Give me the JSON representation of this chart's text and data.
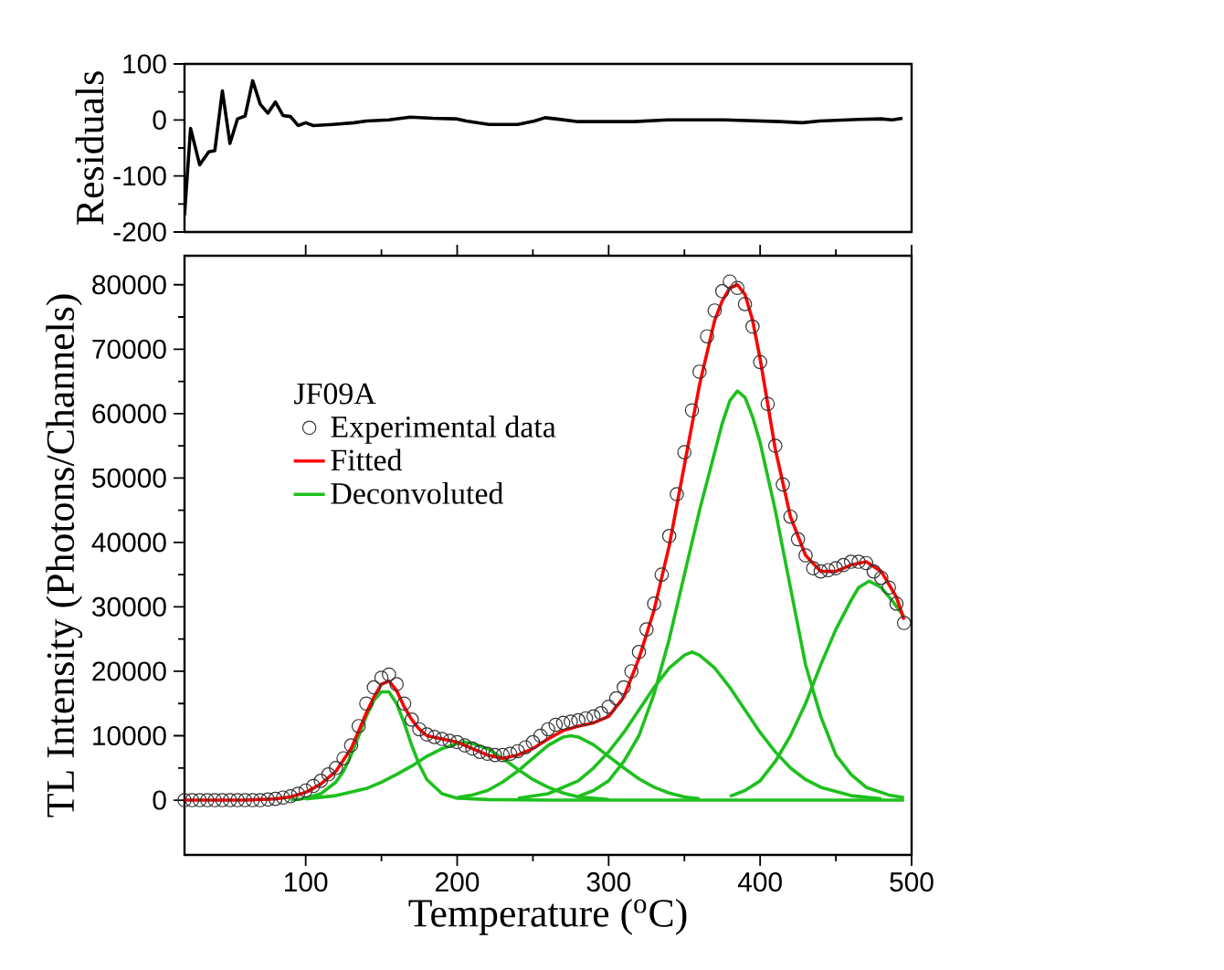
{
  "chart_data": [
    {
      "type": "line",
      "ylabel": "Residuals",
      "xlim": [
        20,
        500
      ],
      "ylim": [
        -200,
        100
      ],
      "yticks": [
        -200,
        -100,
        0,
        100
      ],
      "tick_labels": "y",
      "legend": false,
      "series": [
        {
          "color": "#000000",
          "x": [
            20,
            24,
            30,
            36,
            40,
            45,
            50,
            55,
            60,
            65,
            70,
            75,
            80,
            85,
            90,
            95,
            100,
            105,
            118,
            132,
            140,
            155,
            169,
            184,
            199,
            206,
            221,
            240,
            251,
            258,
            265,
            280,
            302,
            317,
            339,
            376,
            413,
            428,
            439,
            465,
            480,
            487,
            494
          ],
          "values": [
            -170,
            -15,
            -80,
            -57,
            -55,
            52,
            -42,
            2,
            7,
            70,
            28,
            12,
            32,
            8,
            6,
            -10,
            -5,
            -10,
            -8,
            -5,
            -2,
            0,
            5,
            3,
            2,
            -2,
            -8,
            -8,
            -2,
            4,
            2,
            -3,
            -3,
            -3,
            0,
            0,
            -3,
            -5,
            -2,
            1,
            2,
            0,
            3
          ]
        }
      ]
    },
    {
      "type": "line",
      "xlabel": "Temperature ($^{o}$C)",
      "ylabel": "TL Intensity (Photons/Channels)",
      "legend_title": "JF09A",
      "legend": "top left",
      "xlim": [
        20,
        500
      ],
      "ylim": [
        -8500,
        84500
      ],
      "xticks": [
        100,
        200,
        300,
        400,
        500
      ],
      "yticks": [
        0,
        10000,
        20000,
        30000,
        40000,
        50000,
        60000,
        70000,
        80000
      ],
      "series": [
        {
          "name": "Experimental data",
          "type": "scatter",
          "marker": "circle",
          "color": "#333333",
          "x": [
            20,
            25,
            30,
            35,
            40,
            45,
            50,
            55,
            60,
            65,
            70,
            75,
            80,
            85,
            90,
            95,
            100,
            105,
            110,
            115,
            120,
            125,
            130,
            135,
            140,
            145,
            150,
            155,
            160,
            165,
            170,
            175,
            180,
            185,
            190,
            195,
            200,
            205,
            210,
            215,
            220,
            225,
            230,
            235,
            240,
            245,
            250,
            255,
            260,
            265,
            270,
            275,
            280,
            285,
            290,
            295,
            300,
            305,
            310,
            315,
            320,
            325,
            330,
            335,
            340,
            345,
            350,
            355,
            360,
            365,
            370,
            375,
            380,
            385,
            390,
            395,
            400,
            405,
            410,
            415,
            420,
            425,
            430,
            435,
            440,
            445,
            450,
            455,
            460,
            465,
            470,
            475,
            480,
            485,
            490,
            495
          ],
          "values": [
            0,
            0,
            0,
            0,
            0,
            0,
            0,
            0,
            0,
            0,
            0,
            100,
            200,
            400,
            600,
            1000,
            1500,
            2200,
            3000,
            4000,
            5000,
            6500,
            8500,
            11500,
            15000,
            17500,
            19000,
            19500,
            18000,
            15000,
            12500,
            11000,
            10200,
            9800,
            9500,
            9200,
            9000,
            8500,
            8000,
            7500,
            7200,
            7000,
            7000,
            7200,
            7600,
            8200,
            9000,
            10000,
            11000,
            11700,
            12000,
            12200,
            12400,
            12700,
            13000,
            13500,
            14500,
            15800,
            17500,
            20000,
            23000,
            26500,
            30500,
            35000,
            41000,
            47500,
            54000,
            60500,
            66500,
            72000,
            76000,
            79000,
            80500,
            79500,
            77000,
            73500,
            68000,
            61500,
            55000,
            49000,
            44000,
            40500,
            38000,
            36000,
            35500,
            35700,
            36000,
            36500,
            37000,
            37000,
            36800,
            35500,
            34500,
            33000,
            30500,
            27500
          ]
        },
        {
          "name": "Fitted",
          "type": "line",
          "color": "#ff0000",
          "x": [
            20,
            40,
            60,
            80,
            90,
            100,
            110,
            120,
            130,
            140,
            145,
            150,
            155,
            160,
            165,
            170,
            175,
            180,
            190,
            200,
            210,
            220,
            230,
            240,
            250,
            260,
            270,
            280,
            290,
            300,
            310,
            320,
            330,
            340,
            350,
            360,
            370,
            375,
            380,
            385,
            390,
            395,
            400,
            410,
            420,
            430,
            440,
            450,
            460,
            470,
            480,
            490,
            495
          ],
          "values": [
            0,
            0,
            0,
            200,
            500,
            1200,
            2500,
            4500,
            8000,
            13500,
            16000,
            18000,
            18500,
            17000,
            14500,
            12500,
            11000,
            10000,
            9500,
            9000,
            8000,
            7000,
            6500,
            7000,
            8000,
            9500,
            10800,
            11500,
            12000,
            13000,
            16000,
            22000,
            29500,
            39500,
            52000,
            64500,
            74500,
            77500,
            79500,
            80000,
            78500,
            74500,
            68500,
            54500,
            44000,
            38000,
            35500,
            35500,
            36500,
            37000,
            35500,
            31500,
            28000
          ]
        },
        {
          "name": "Deconvoluted",
          "type": "line",
          "color": "#1ec01e",
          "x": [
            90,
            100,
            110,
            120,
            125,
            130,
            135,
            140,
            145,
            150,
            155,
            160,
            165,
            170,
            175,
            180,
            190,
            200,
            220,
            260,
            330,
            400,
            495
          ],
          "values": [
            0,
            300,
            1000,
            2800,
            4500,
            7000,
            10000,
            13000,
            15500,
            16800,
            16800,
            15000,
            12000,
            8500,
            5500,
            3200,
            1000,
            300,
            100,
            0,
            0,
            0,
            0
          ]
        },
        {
          "type": "line",
          "color": "#1ec01e",
          "x": [
            100,
            120,
            140,
            150,
            160,
            170,
            180,
            190,
            200,
            205,
            210,
            220,
            230,
            240,
            250,
            260,
            270,
            280,
            300
          ],
          "values": [
            200,
            700,
            1800,
            2800,
            4000,
            5300,
            6800,
            8000,
            8800,
            9000,
            8800,
            8000,
            6500,
            4800,
            3200,
            2000,
            1100,
            500,
            100
          ]
        },
        {
          "type": "line",
          "color": "#1ec01e",
          "x": [
            200,
            210,
            220,
            230,
            240,
            250,
            260,
            270,
            275,
            280,
            290,
            300,
            310,
            320,
            330,
            340,
            350,
            360
          ],
          "values": [
            400,
            800,
            1500,
            2800,
            4500,
            6500,
            8500,
            9800,
            10000,
            9800,
            8600,
            6800,
            5000,
            3300,
            2000,
            1100,
            500,
            200
          ]
        },
        {
          "type": "line",
          "color": "#1ec01e",
          "x": [
            240,
            260,
            280,
            290,
            300,
            310,
            320,
            330,
            340,
            350,
            355,
            360,
            370,
            380,
            390,
            400,
            410,
            420,
            430,
            440,
            460,
            480
          ],
          "values": [
            300,
            1000,
            3000,
            5000,
            7500,
            10500,
            14000,
            17500,
            20500,
            22500,
            23000,
            22500,
            20500,
            17500,
            14000,
            10500,
            7500,
            5000,
            3200,
            2000,
            700,
            200
          ]
        },
        {
          "type": "line",
          "color": "#1ec01e",
          "x": [
            280,
            290,
            300,
            310,
            320,
            330,
            340,
            350,
            360,
            370,
            375,
            380,
            385,
            390,
            395,
            400,
            410,
            420,
            430,
            440,
            450,
            460,
            470,
            485,
            495
          ],
          "values": [
            600,
            1500,
            3000,
            6000,
            10000,
            16500,
            25000,
            35000,
            45000,
            54000,
            58500,
            62000,
            63500,
            62500,
            59500,
            55500,
            45000,
            33000,
            21000,
            13000,
            7000,
            4000,
            2000,
            800,
            400
          ]
        },
        {
          "type": "line",
          "color": "#1ec01e",
          "x": [
            380,
            390,
            400,
            410,
            420,
            430,
            440,
            450,
            460,
            465,
            472,
            480,
            487,
            495
          ],
          "values": [
            600,
            1500,
            3000,
            6000,
            10000,
            15000,
            21000,
            26500,
            31000,
            33000,
            34000,
            33000,
            31000,
            28500
          ]
        }
      ]
    }
  ]
}
